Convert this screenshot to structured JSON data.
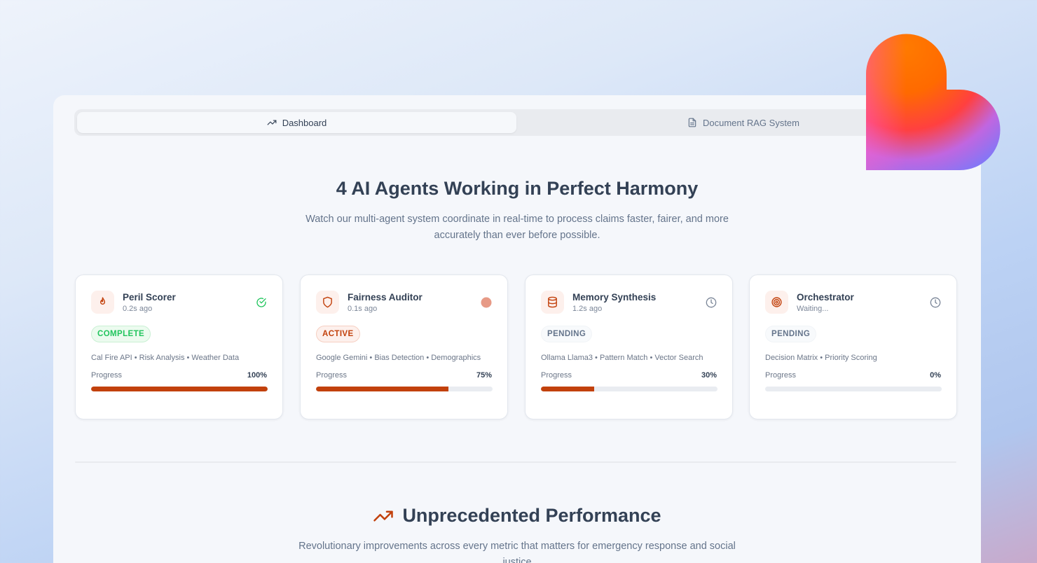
{
  "tabs": [
    {
      "label": "Dashboard",
      "icon": "trending-up-icon",
      "active": true
    },
    {
      "label": "Document RAG System",
      "icon": "file-text-icon",
      "active": false
    }
  ],
  "hero": {
    "title": "4 AI Agents Working in Perfect Harmony",
    "subtitle": "Watch our multi-agent system coordinate in real-time to process claims faster, fairer, and more accurately than ever before possible."
  },
  "agents": [
    {
      "name": "Peril Scorer",
      "time": "0.2s ago",
      "status": "COMPLETE",
      "status_icon": "check-circle-icon",
      "icon": "flame-icon",
      "tags": "Cal Fire API • Risk Analysis • Weather Data",
      "progress_label": "Progress",
      "progress": 100,
      "progress_text": "100%"
    },
    {
      "name": "Fairness Auditor",
      "time": "0.1s ago",
      "status": "ACTIVE",
      "status_icon": "pulse-dot-icon",
      "icon": "shield-icon",
      "tags": "Google Gemini • Bias Detection • Demographics",
      "progress_label": "Progress",
      "progress": 75,
      "progress_text": "75%"
    },
    {
      "name": "Memory Synthesis",
      "time": "1.2s ago",
      "status": "PENDING",
      "status_icon": "clock-icon",
      "icon": "database-icon",
      "tags": "Ollama Llama3 • Pattern Match • Vector Search",
      "progress_label": "Progress",
      "progress": 30,
      "progress_text": "30%"
    },
    {
      "name": "Orchestrator",
      "time": "Waiting...",
      "status": "PENDING",
      "status_icon": "clock-icon",
      "icon": "target-icon",
      "tags": "Decision Matrix • Priority Scoring",
      "progress_label": "Progress",
      "progress": 0,
      "progress_text": "0%"
    }
  ],
  "performance": {
    "title": "Unprecedented Performance",
    "subtitle": "Revolutionary improvements across every metric that matters for emergency response and social justice"
  },
  "colors": {
    "accent": "#c2410c",
    "complete": "#22c55e",
    "text": "#334155",
    "muted": "#64748b"
  }
}
